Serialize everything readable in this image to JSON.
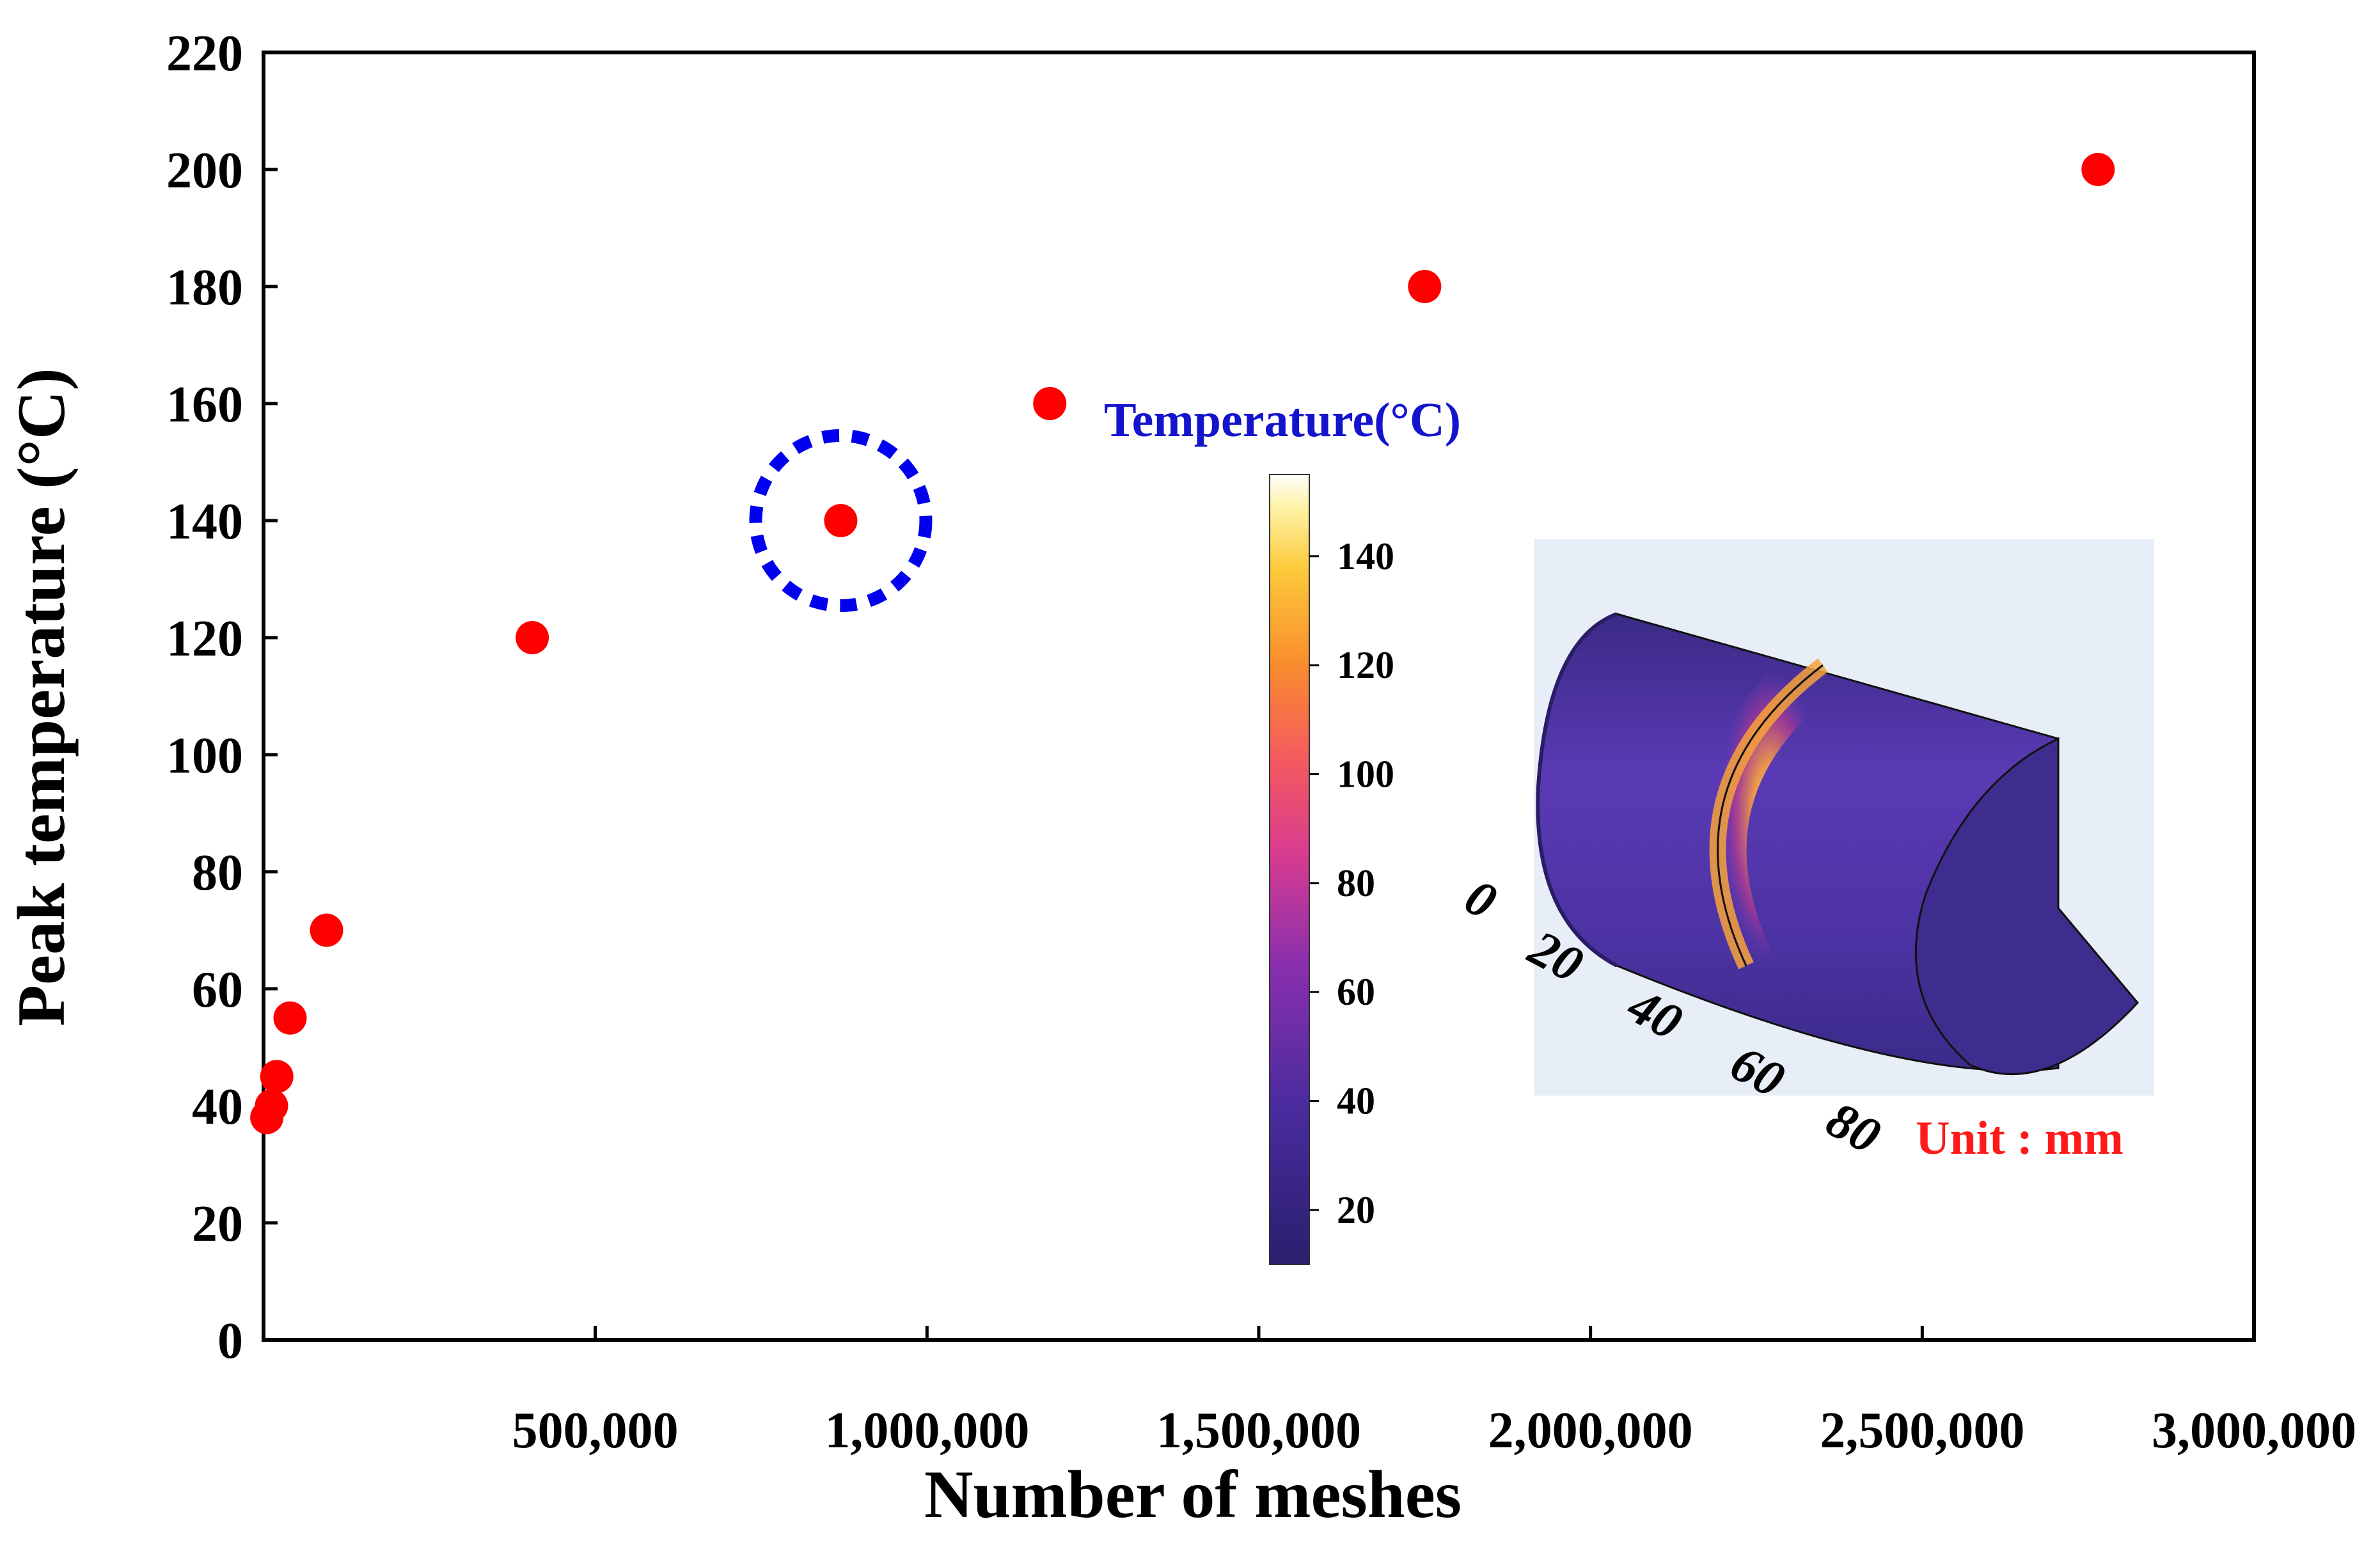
{
  "chart_data": {
    "type": "scatter",
    "xlabel": "Number of meshes",
    "ylabel": "Peak temperature  (°C)",
    "xlim": [
      0,
      3000000
    ],
    "ylim": [
      0,
      220
    ],
    "x_ticks": [
      {
        "value": 500000,
        "label": "500,000"
      },
      {
        "value": 1000000,
        "label": "1,000,000"
      },
      {
        "value": 1500000,
        "label": "1,500,000"
      },
      {
        "value": 2000000,
        "label": "2,000,000"
      },
      {
        "value": 2500000,
        "label": "2,500,000"
      },
      {
        "value": 3000000,
        "label": "3,000,000"
      }
    ],
    "y_ticks": [
      0,
      20,
      40,
      60,
      80,
      100,
      120,
      140,
      160,
      180,
      200,
      220
    ],
    "series": [
      {
        "name": "Peak temperature",
        "color": "#ff0000",
        "points": [
          {
            "x": 5000,
            "y": 38
          },
          {
            "x": 12000,
            "y": 40
          },
          {
            "x": 20000,
            "y": 45
          },
          {
            "x": 40000,
            "y": 55
          },
          {
            "x": 95000,
            "y": 70
          },
          {
            "x": 405000,
            "y": 120
          },
          {
            "x": 870000,
            "y": 140
          },
          {
            "x": 1185000,
            "y": 160
          },
          {
            "x": 1750000,
            "y": 180
          },
          {
            "x": 2765000,
            "y": 200
          }
        ]
      }
    ],
    "highlight": {
      "x": 870000,
      "y": 140,
      "color": "#0000ee",
      "style": "dashed circle"
    },
    "grid": false,
    "inset": {
      "colorbar_title": "Temperature(°C)",
      "colorbar_ticks": [
        20,
        40,
        60,
        80,
        100,
        120,
        140
      ],
      "colorbar_range": [
        10,
        155
      ],
      "dimension_labels": [
        "0",
        "20",
        "40",
        "60",
        "80"
      ],
      "unit_label": "Unit : mm"
    }
  }
}
